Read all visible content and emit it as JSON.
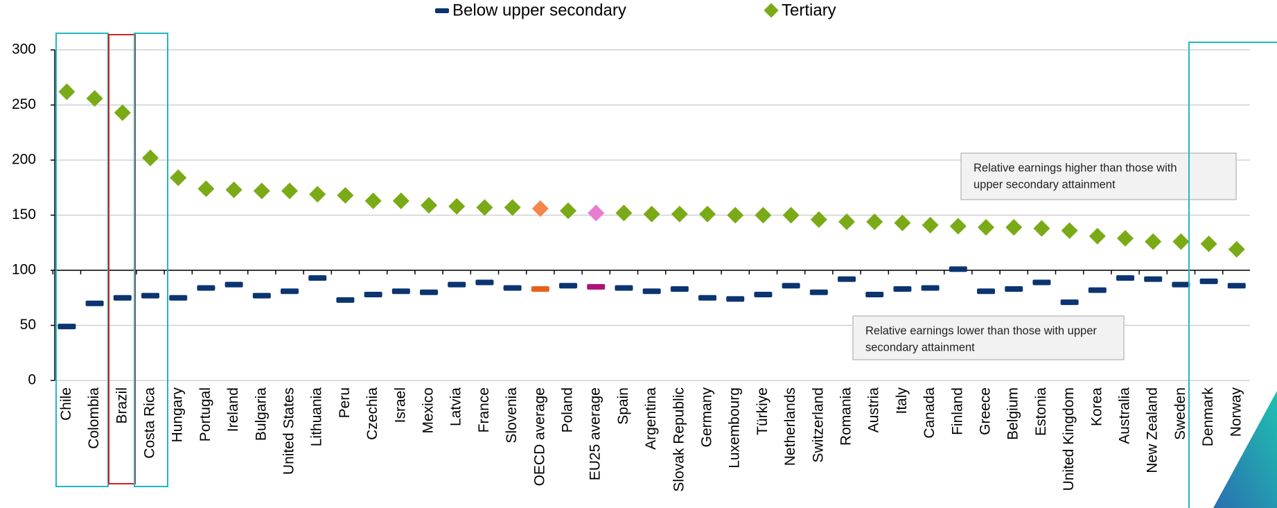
{
  "chart_data": {
    "type": "dot",
    "categories": [
      "Chile",
      "Colombia",
      "Brazil",
      "Costa Rica",
      "Hungary",
      "Portugal",
      "Ireland",
      "Bulgaria",
      "United States",
      "Lithuania",
      "Peru",
      "Czechia",
      "Israel",
      "Mexico",
      "Latvia",
      "France",
      "Slovenia",
      "OECD average",
      "Poland",
      "EU25 average",
      "Spain",
      "Argentina",
      "Slovak Republic",
      "Germany",
      "Luxembourg",
      "Türkiye",
      "Netherlands",
      "Switzerland",
      "Romania",
      "Austria",
      "Italy",
      "Canada",
      "Finland",
      "Greece",
      "Belgium",
      "Estonia",
      "United Kingdom",
      "Korea",
      "Australia",
      "New Zealand",
      "Sweden",
      "Denmark",
      "Norway"
    ],
    "series": [
      {
        "name": "Below upper secondary",
        "marker": "dash",
        "color": "#0b3470",
        "values": [
          49,
          70,
          75,
          77,
          75,
          84,
          87,
          77,
          81,
          93,
          73,
          78,
          81,
          80,
          87,
          89,
          84,
          83,
          86,
          85,
          84,
          81,
          83,
          75,
          74,
          78,
          86,
          80,
          92,
          78,
          83,
          84,
          101,
          81,
          83,
          89,
          71,
          82,
          93,
          92,
          87,
          90,
          86
        ],
        "point_colors": {
          "OECD average": "#e8601c",
          "EU25 average": "#b0107a"
        }
      },
      {
        "name": "Tertiary",
        "marker": "diamond",
        "color": "#7aab17",
        "values": [
          262,
          256,
          243,
          202,
          184,
          174,
          173,
          172,
          172,
          169,
          168,
          163,
          163,
          159,
          158,
          157,
          157,
          156,
          154,
          152,
          152,
          151,
          151,
          151,
          150,
          150,
          150,
          146,
          144,
          144,
          143,
          141,
          140,
          139,
          139,
          138,
          136,
          131,
          129,
          126,
          126,
          124,
          119
        ],
        "point_colors": {
          "OECD average": "#f5864b",
          "EU25 average": "#e87dd0"
        }
      }
    ],
    "ylim": [
      0,
      300
    ],
    "yticks": [
      0,
      50,
      100,
      150,
      200,
      250,
      300
    ],
    "grid": true,
    "reference_line": 100,
    "annotations": [
      {
        "lines": [
          "Relative earnings higher than those with",
          "upper secondary attainment"
        ]
      },
      {
        "lines": [
          "Relative earnings lower than those with upper",
          "secondary attainment"
        ]
      }
    ]
  }
}
